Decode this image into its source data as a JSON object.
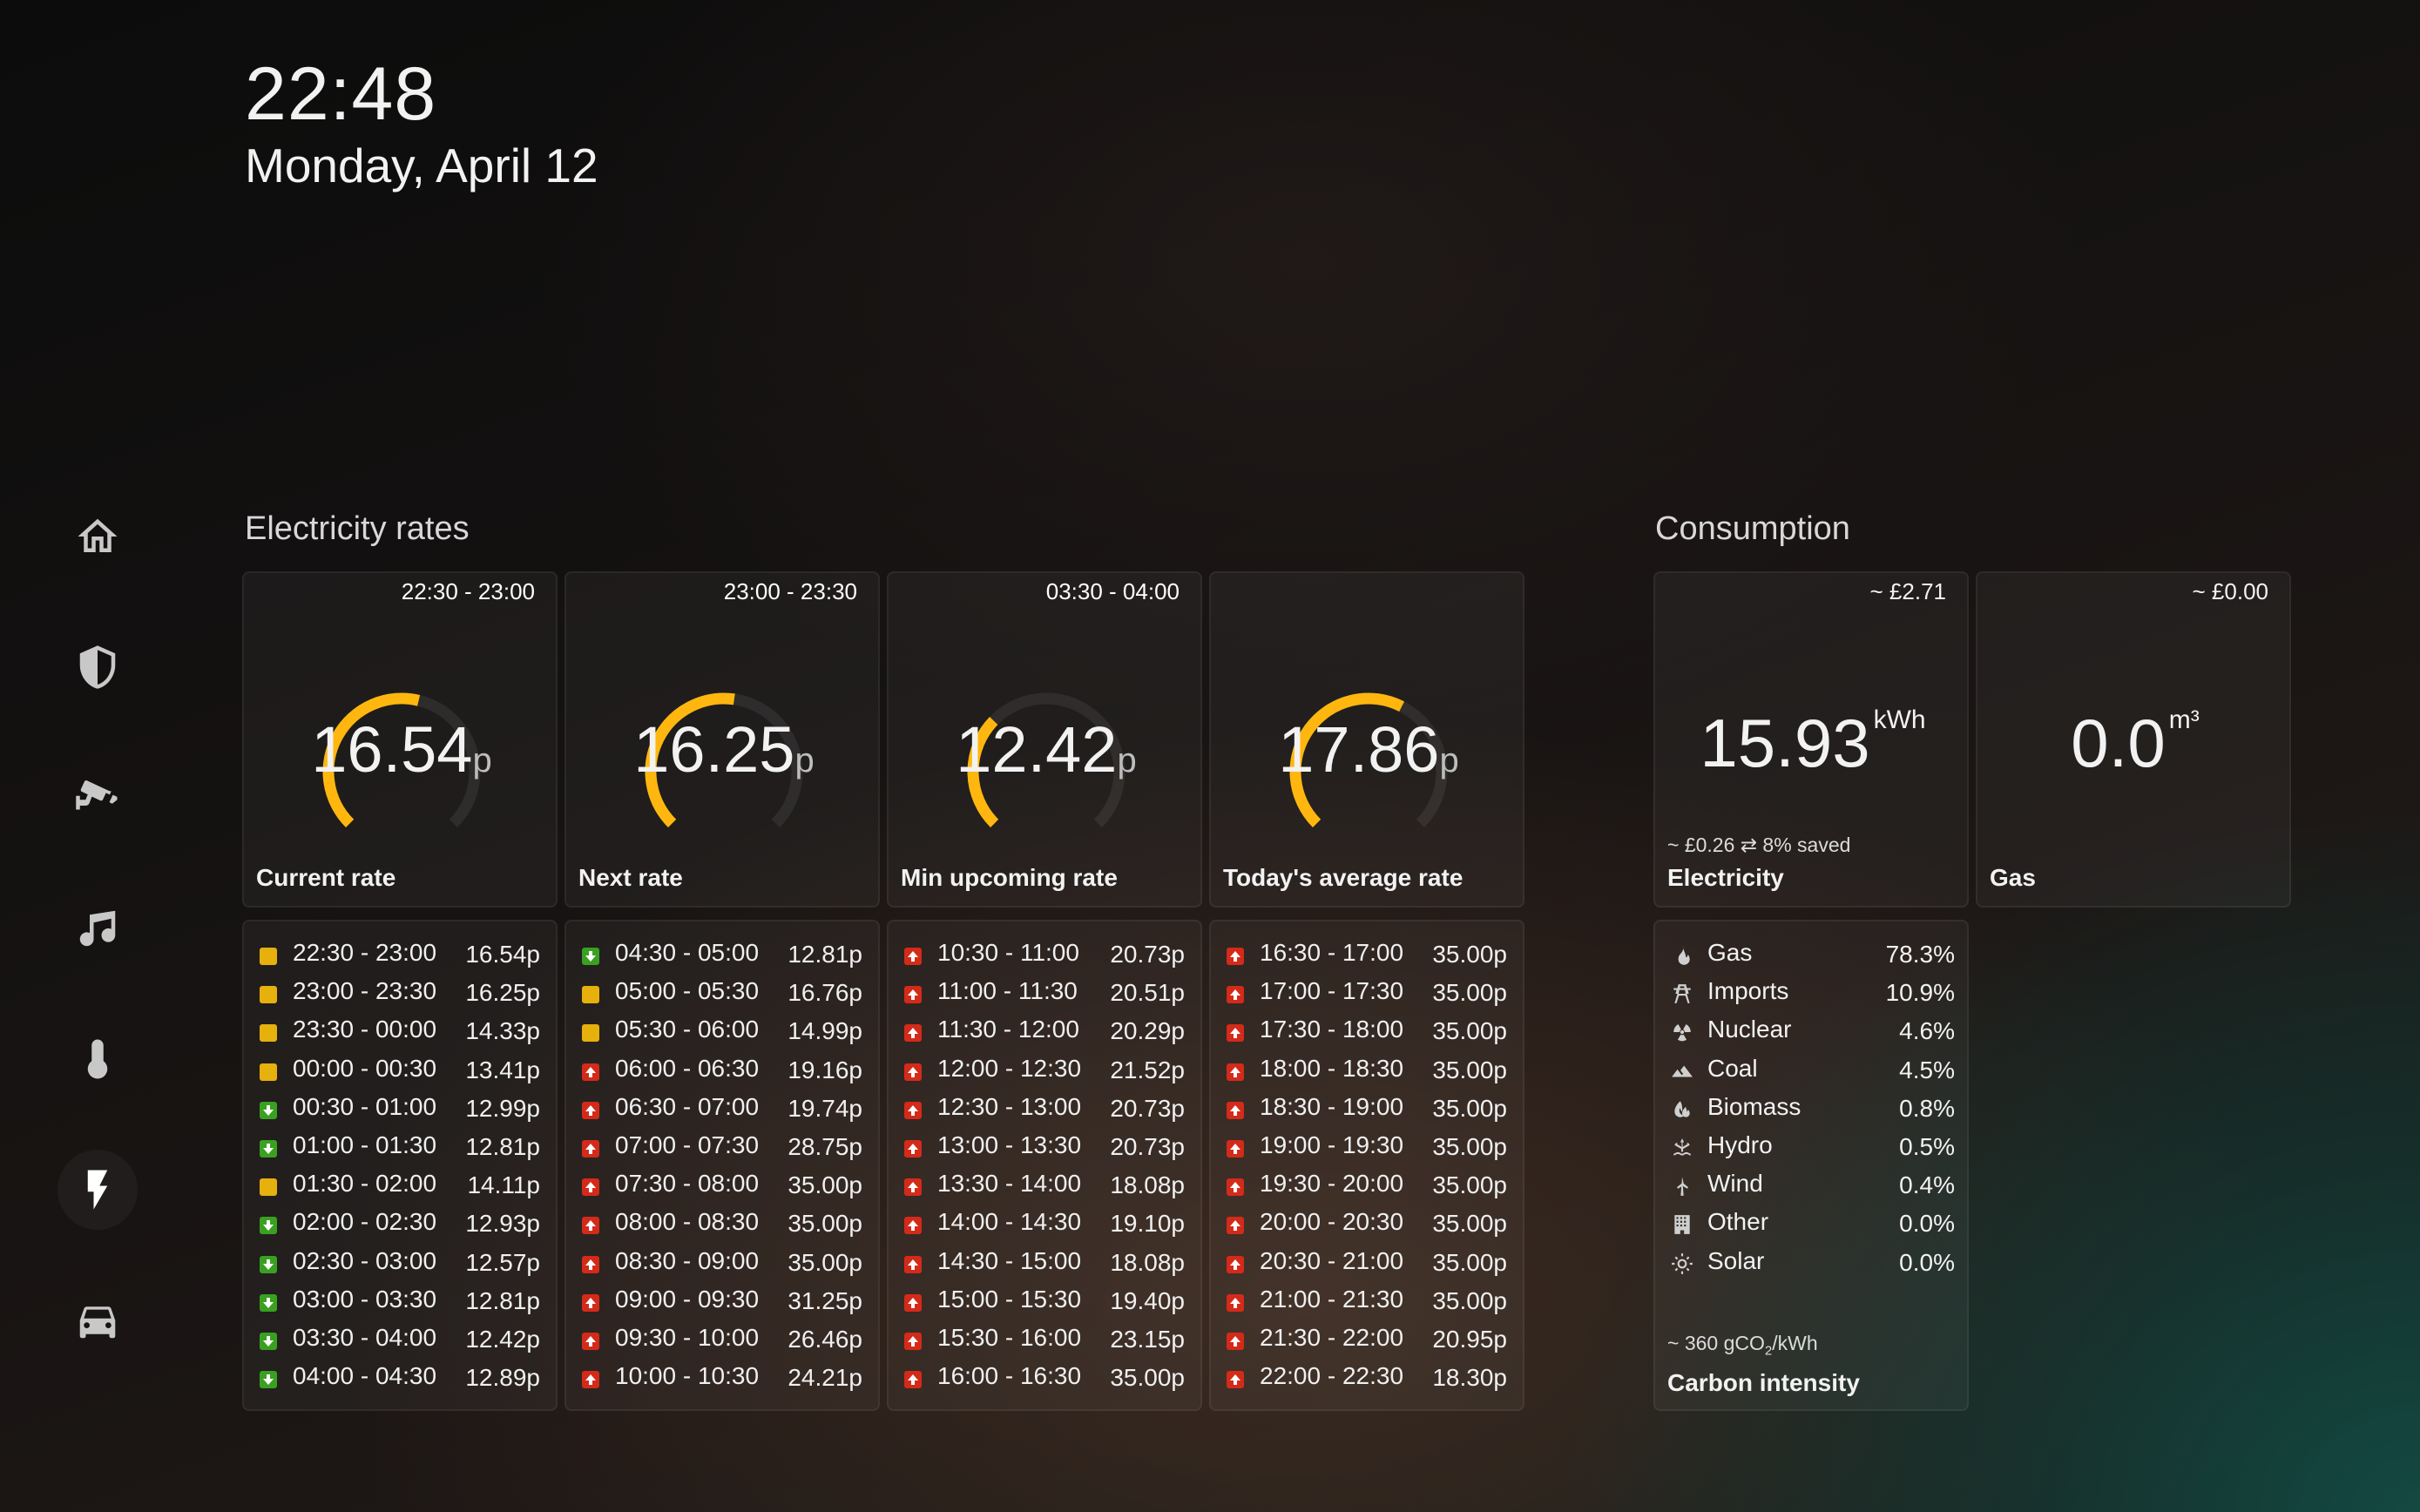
{
  "clock": {
    "time": "22:48",
    "date": "Monday, April 12"
  },
  "nav": [
    "home-icon",
    "shield-icon",
    "cctv-camera-icon",
    "music-note-icon",
    "thermometer-icon",
    "lightning-bolt-icon",
    "car-icon"
  ],
  "electricity": {
    "title": "Electricity rates",
    "unit": "p",
    "gauges": [
      {
        "range": "22:30 - 23:00",
        "value": "16.54",
        "label": "Current rate",
        "fill": 0.55
      },
      {
        "range": "23:00 - 23:30",
        "value": "16.25",
        "label": "Next rate",
        "fill": 0.53
      },
      {
        "range": "03:30 - 04:00",
        "value": "12.42",
        "label": "Min upcoming rate",
        "fill": 0.33
      },
      {
        "range": "",
        "value": "17.86",
        "label": "Today's average rate",
        "fill": 0.6
      }
    ],
    "gauge_color": "#ffb70f",
    "rate_lists": [
      [
        {
          "dir": "flat",
          "time": "22:30 - 23:00",
          "price": "16.54p"
        },
        {
          "dir": "flat",
          "time": "23:00 - 23:30",
          "price": "16.25p"
        },
        {
          "dir": "flat",
          "time": "23:30 - 00:00",
          "price": "14.33p"
        },
        {
          "dir": "flat",
          "time": "00:00 - 00:30",
          "price": "13.41p"
        },
        {
          "dir": "down",
          "time": "00:30 - 01:00",
          "price": "12.99p"
        },
        {
          "dir": "down",
          "time": "01:00 - 01:30",
          "price": "12.81p"
        },
        {
          "dir": "flat",
          "time": "01:30 - 02:00",
          "price": "14.11p"
        },
        {
          "dir": "down",
          "time": "02:00 - 02:30",
          "price": "12.93p"
        },
        {
          "dir": "down",
          "time": "02:30 - 03:00",
          "price": "12.57p"
        },
        {
          "dir": "down",
          "time": "03:00 - 03:30",
          "price": "12.81p"
        },
        {
          "dir": "down",
          "time": "03:30 - 04:00",
          "price": "12.42p"
        },
        {
          "dir": "down",
          "time": "04:00 - 04:30",
          "price": "12.89p"
        }
      ],
      [
        {
          "dir": "down",
          "time": "04:30 - 05:00",
          "price": "12.81p"
        },
        {
          "dir": "flat",
          "time": "05:00 - 05:30",
          "price": "16.76p"
        },
        {
          "dir": "flat",
          "time": "05:30 - 06:00",
          "price": "14.99p"
        },
        {
          "dir": "up",
          "time": "06:00 - 06:30",
          "price": "19.16p"
        },
        {
          "dir": "up",
          "time": "06:30 - 07:00",
          "price": "19.74p"
        },
        {
          "dir": "up",
          "time": "07:00 - 07:30",
          "price": "28.75p"
        },
        {
          "dir": "up",
          "time": "07:30 - 08:00",
          "price": "35.00p"
        },
        {
          "dir": "up",
          "time": "08:00 - 08:30",
          "price": "35.00p"
        },
        {
          "dir": "up",
          "time": "08:30 - 09:00",
          "price": "35.00p"
        },
        {
          "dir": "up",
          "time": "09:00 - 09:30",
          "price": "31.25p"
        },
        {
          "dir": "up",
          "time": "09:30 - 10:00",
          "price": "26.46p"
        },
        {
          "dir": "up",
          "time": "10:00 - 10:30",
          "price": "24.21p"
        }
      ],
      [
        {
          "dir": "up",
          "time": "10:30 - 11:00",
          "price": "20.73p"
        },
        {
          "dir": "up",
          "time": "11:00 - 11:30",
          "price": "20.51p"
        },
        {
          "dir": "up",
          "time": "11:30 - 12:00",
          "price": "20.29p"
        },
        {
          "dir": "up",
          "time": "12:00 - 12:30",
          "price": "21.52p"
        },
        {
          "dir": "up",
          "time": "12:30 - 13:00",
          "price": "20.73p"
        },
        {
          "dir": "up",
          "time": "13:00 - 13:30",
          "price": "20.73p"
        },
        {
          "dir": "up",
          "time": "13:30 - 14:00",
          "price": "18.08p"
        },
        {
          "dir": "up",
          "time": "14:00 - 14:30",
          "price": "19.10p"
        },
        {
          "dir": "up",
          "time": "14:30 - 15:00",
          "price": "18.08p"
        },
        {
          "dir": "up",
          "time": "15:00 - 15:30",
          "price": "19.40p"
        },
        {
          "dir": "up",
          "time": "15:30 - 16:00",
          "price": "23.15p"
        },
        {
          "dir": "up",
          "time": "16:00 - 16:30",
          "price": "35.00p"
        }
      ],
      [
        {
          "dir": "up",
          "time": "16:30 - 17:00",
          "price": "35.00p"
        },
        {
          "dir": "up",
          "time": "17:00 - 17:30",
          "price": "35.00p"
        },
        {
          "dir": "up",
          "time": "17:30 - 18:00",
          "price": "35.00p"
        },
        {
          "dir": "up",
          "time": "18:00 - 18:30",
          "price": "35.00p"
        },
        {
          "dir": "up",
          "time": "18:30 - 19:00",
          "price": "35.00p"
        },
        {
          "dir": "up",
          "time": "19:00 - 19:30",
          "price": "35.00p"
        },
        {
          "dir": "up",
          "time": "19:30 - 20:00",
          "price": "35.00p"
        },
        {
          "dir": "up",
          "time": "20:00 - 20:30",
          "price": "35.00p"
        },
        {
          "dir": "up",
          "time": "20:30 - 21:00",
          "price": "35.00p"
        },
        {
          "dir": "up",
          "time": "21:00 - 21:30",
          "price": "35.00p"
        },
        {
          "dir": "up",
          "time": "21:30 - 22:00",
          "price": "20.95p"
        },
        {
          "dir": "up",
          "time": "22:00 - 22:30",
          "price": "18.30p"
        }
      ]
    ],
    "indicator_colors": {
      "flat": "#e6b00d",
      "down": "#3aa021",
      "up": "#d42a1a"
    }
  },
  "consumption": {
    "title": "Consumption",
    "electricity": {
      "cost": "~ £2.71",
      "value": "15.93",
      "unit": "kWh",
      "sub": "~ £0.26 ⇄ 8% saved",
      "label": "Electricity"
    },
    "gas": {
      "cost": "~ £0.00",
      "value": "0.0",
      "unit": "m³",
      "label": "Gas"
    },
    "mix": [
      {
        "icon": "fire-icon",
        "name": "Gas",
        "pct": "78.3%"
      },
      {
        "icon": "transmission-tower-icon",
        "name": "Imports",
        "pct": "10.9%"
      },
      {
        "icon": "radioactive-icon",
        "name": "Nuclear",
        "pct": "4.6%"
      },
      {
        "icon": "mountain-icon",
        "name": "Coal",
        "pct": "4.5%"
      },
      {
        "icon": "leaf-fire-icon",
        "name": "Biomass",
        "pct": "0.8%"
      },
      {
        "icon": "hydro-icon",
        "name": "Hydro",
        "pct": "0.5%"
      },
      {
        "icon": "wind-turbine-icon",
        "name": "Wind",
        "pct": "0.4%"
      },
      {
        "icon": "building-icon",
        "name": "Other",
        "pct": "0.0%"
      },
      {
        "icon": "sun-icon",
        "name": "Solar",
        "pct": "0.0%"
      }
    ],
    "carbon": {
      "prefix": "~ 360 gCO",
      "sub": "2",
      "suffix": "/kWh",
      "label": "Carbon intensity"
    }
  }
}
